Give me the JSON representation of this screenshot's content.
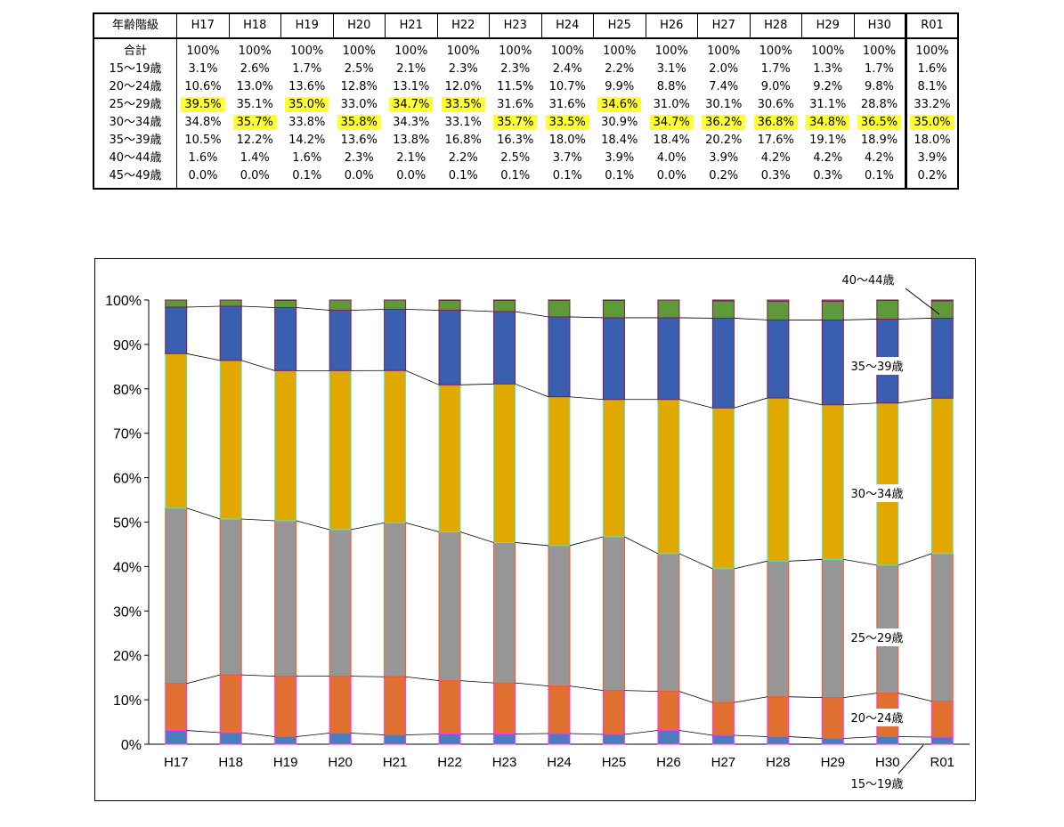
{
  "table": {
    "header_label": "年齢階級",
    "columns": [
      "H17",
      "H18",
      "H19",
      "H20",
      "H21",
      "H22",
      "H23",
      "H24",
      "H25",
      "H26",
      "H27",
      "H28",
      "H29",
      "H30",
      "R01"
    ],
    "rows": [
      {
        "label": "合計",
        "values": [
          "100%",
          "100%",
          "100%",
          "100%",
          "100%",
          "100%",
          "100%",
          "100%",
          "100%",
          "100%",
          "100%",
          "100%",
          "100%",
          "100%",
          "100%"
        ],
        "highlight": []
      },
      {
        "label": "15～19歳",
        "values": [
          "3.1%",
          "2.6%",
          "1.7%",
          "2.5%",
          "2.1%",
          "2.3%",
          "2.3%",
          "2.4%",
          "2.2%",
          "3.1%",
          "2.0%",
          "1.7%",
          "1.3%",
          "1.7%",
          "1.6%"
        ],
        "highlight": []
      },
      {
        "label": "20～24歳",
        "values": [
          "10.6%",
          "13.0%",
          "13.6%",
          "12.8%",
          "13.1%",
          "12.0%",
          "11.5%",
          "10.7%",
          "9.9%",
          "8.8%",
          "7.4%",
          "9.0%",
          "9.2%",
          "9.8%",
          "8.1%"
        ],
        "highlight": []
      },
      {
        "label": "25～29歳",
        "values": [
          "39.5%",
          "35.1%",
          "35.0%",
          "33.0%",
          "34.7%",
          "33.5%",
          "31.6%",
          "31.6%",
          "34.6%",
          "31.0%",
          "30.1%",
          "30.6%",
          "31.1%",
          "28.8%",
          "33.2%"
        ],
        "highlight": [
          0,
          2,
          4,
          5,
          8
        ]
      },
      {
        "label": "30～34歳",
        "values": [
          "34.8%",
          "35.7%",
          "33.8%",
          "35.8%",
          "34.3%",
          "33.1%",
          "35.7%",
          "33.5%",
          "30.9%",
          "34.7%",
          "36.2%",
          "36.8%",
          "34.8%",
          "36.5%",
          "35.0%"
        ],
        "highlight": [
          1,
          3,
          6,
          7,
          9,
          10,
          11,
          12,
          13,
          14
        ]
      },
      {
        "label": "35～39歳",
        "values": [
          "10.5%",
          "12.2%",
          "14.2%",
          "13.6%",
          "13.8%",
          "16.8%",
          "16.3%",
          "18.0%",
          "18.4%",
          "18.4%",
          "20.2%",
          "17.6%",
          "19.1%",
          "18.9%",
          "18.0%"
        ],
        "highlight": []
      },
      {
        "label": "40～44歳",
        "values": [
          "1.6%",
          "1.4%",
          "1.6%",
          "2.3%",
          "2.1%",
          "2.2%",
          "2.5%",
          "3.7%",
          "3.9%",
          "4.0%",
          "3.9%",
          "4.2%",
          "4.2%",
          "4.2%",
          "3.9%"
        ],
        "highlight": []
      },
      {
        "label": "45～49歳",
        "values": [
          "0.0%",
          "0.0%",
          "0.1%",
          "0.0%",
          "0.0%",
          "0.1%",
          "0.1%",
          "0.1%",
          "0.1%",
          "0.0%",
          "0.2%",
          "0.3%",
          "0.3%",
          "0.1%",
          "0.2%"
        ],
        "highlight": []
      }
    ],
    "highlight_color": "#ffff33"
  },
  "chart_data": {
    "type": "bar",
    "stacked": "percent",
    "categories": [
      "H17",
      "H18",
      "H19",
      "H20",
      "H21",
      "H22",
      "H23",
      "H24",
      "H25",
      "H26",
      "H27",
      "H28",
      "H29",
      "H30",
      "R01"
    ],
    "yticks": [
      "0%",
      "10%",
      "20%",
      "30%",
      "40%",
      "50%",
      "60%",
      "70%",
      "80%",
      "90%",
      "100%"
    ],
    "ylim": [
      0,
      100
    ],
    "series": [
      {
        "name": "15～19歳",
        "color": "#4a7ebb",
        "edge": "#ff33ff",
        "values": [
          3.1,
          2.6,
          1.7,
          2.5,
          2.1,
          2.3,
          2.3,
          2.4,
          2.2,
          3.1,
          2.0,
          1.7,
          1.3,
          1.7,
          1.6
        ]
      },
      {
        "name": "20～24歳",
        "color": "#e07030",
        "edge": "#ff33ff",
        "values": [
          10.6,
          13.0,
          13.6,
          12.8,
          13.1,
          12.0,
          11.5,
          10.7,
          9.9,
          8.8,
          7.4,
          9.0,
          9.2,
          9.8,
          8.1
        ]
      },
      {
        "name": "25～29歳",
        "color": "#969696",
        "edge": "#ff5522",
        "values": [
          39.5,
          35.1,
          35.0,
          33.0,
          34.7,
          33.5,
          31.6,
          31.6,
          34.6,
          31.0,
          30.1,
          30.6,
          31.1,
          28.8,
          33.2
        ]
      },
      {
        "name": "30～34歳",
        "color": "#e0a800",
        "edge": "#55e8c8",
        "values": [
          34.8,
          35.7,
          33.8,
          35.8,
          34.3,
          33.1,
          35.7,
          33.5,
          30.9,
          34.7,
          36.2,
          36.8,
          34.8,
          36.5,
          35.0
        ]
      },
      {
        "name": "35～39歳",
        "color": "#3a5fb0",
        "edge": "#7a2050",
        "values": [
          10.5,
          12.2,
          14.2,
          13.6,
          13.8,
          16.8,
          16.3,
          18.0,
          18.4,
          18.4,
          20.2,
          17.6,
          19.1,
          18.9,
          18.0
        ]
      },
      {
        "name": "40～44歳",
        "color": "#5e9a3a",
        "edge": "#7a2050",
        "values": [
          1.6,
          1.4,
          1.6,
          2.3,
          2.1,
          2.2,
          2.5,
          3.7,
          3.9,
          4.0,
          3.9,
          4.2,
          4.2,
          4.2,
          3.9
        ]
      },
      {
        "name": "45～49歳",
        "color": "#5e9a3a",
        "edge": "#7a2050",
        "values": [
          0.0,
          0.0,
          0.1,
          0.0,
          0.0,
          0.1,
          0.1,
          0.1,
          0.1,
          0.0,
          0.2,
          0.3,
          0.3,
          0.1,
          0.2
        ]
      }
    ],
    "series_labels": [
      {
        "text": "40～44歳"
      },
      {
        "text": "35～39歳"
      },
      {
        "text": "30～34歳"
      },
      {
        "text": "25～29歳"
      },
      {
        "text": "20～24歳"
      },
      {
        "text": "15～19歳"
      }
    ],
    "grid": false,
    "series_lines": true
  }
}
